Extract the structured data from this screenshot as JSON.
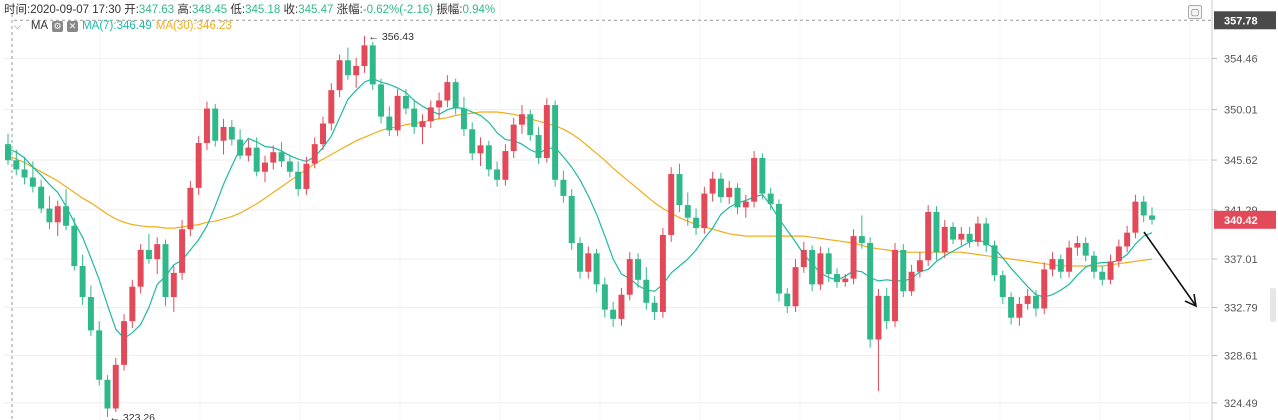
{
  "info": {
    "time_label": "时间:",
    "time": "2020-09-07 17:30",
    "open_label": "开:",
    "open": "347.63",
    "high_label": "高:",
    "high": "348.45",
    "low_label": "低:",
    "low": "345.18",
    "close_label": "收:",
    "close": "345.47",
    "change_label": "涨幅:",
    "change": "-0.62%(-2.16)",
    "amp_label": "振幅:",
    "amp": "0.94%"
  },
  "ma": {
    "label": "MA",
    "ma7_label": "MA(7):346.49",
    "ma30_label": "MA(30):346.23",
    "ma7_color": "#1fb9a4",
    "ma30_color": "#f0ad1a"
  },
  "icons": {
    "collapse": "chevron-down-icon",
    "settings": "gear-icon",
    "close": "close-icon",
    "expand": "expand-icon"
  },
  "colors": {
    "up": "#e24a5a",
    "down": "#2fb98a",
    "grid": "#eeeeee",
    "axis_text": "#555555"
  },
  "chart_data": {
    "type": "candlestick",
    "ylim": [
      323.0,
      358.5
    ],
    "y_ticks": [
      "354.46",
      "350.01",
      "345.62",
      "341.29",
      "337.01",
      "332.79",
      "328.61",
      "324.49"
    ],
    "current_price": "340.42",
    "top_price": "357.78",
    "max_label": "← 356.43",
    "min_label": "← 323.26",
    "grid": true,
    "candles": [
      [
        347,
        347.9,
        345.2,
        345.6
      ],
      [
        345.6,
        346.5,
        344.3,
        344.8
      ],
      [
        344.8,
        345.9,
        343.5,
        344.1
      ],
      [
        344.1,
        345.5,
        342.8,
        343.3
      ],
      [
        343.3,
        343.9,
        341.0,
        341.4
      ],
      [
        341.4,
        342.5,
        339.6,
        340.2
      ],
      [
        340.2,
        342.1,
        339.0,
        341.6
      ],
      [
        341.6,
        343.1,
        339.5,
        339.9
      ],
      [
        339.9,
        340.6,
        336.0,
        336.4
      ],
      [
        336.4,
        337.4,
        333.0,
        333.7
      ],
      [
        333.7,
        334.7,
        330.3,
        330.8
      ],
      [
        330.8,
        331.6,
        326.0,
        326.5
      ],
      [
        326.5,
        326.9,
        323.26,
        324.0
      ],
      [
        324.0,
        328.4,
        323.7,
        327.8
      ],
      [
        327.8,
        332.2,
        327.3,
        331.6
      ],
      [
        331.6,
        335.2,
        331.0,
        334.6
      ],
      [
        334.6,
        338.3,
        334.0,
        337.8
      ],
      [
        337.8,
        339.2,
        336.6,
        337.0
      ],
      [
        337.0,
        338.9,
        335.7,
        338.3
      ],
      [
        338.3,
        338.7,
        332.9,
        333.7
      ],
      [
        333.7,
        336.4,
        332.4,
        335.8
      ],
      [
        335.8,
        340.4,
        335.2,
        339.6
      ],
      [
        339.6,
        343.8,
        339.0,
        343.2
      ],
      [
        343.2,
        347.7,
        342.6,
        347.1
      ],
      [
        347.1,
        350.7,
        346.5,
        350.1
      ],
      [
        350.1,
        350.5,
        346.8,
        347.3
      ],
      [
        347.3,
        349.2,
        346.1,
        348.5
      ],
      [
        348.5,
        349.1,
        346.9,
        347.4
      ],
      [
        347.4,
        348.3,
        345.7,
        346.0
      ],
      [
        346.0,
        347.4,
        345.5,
        346.7
      ],
      [
        346.7,
        347.6,
        344.2,
        344.6
      ],
      [
        344.6,
        346.0,
        343.7,
        345.4
      ],
      [
        345.4,
        346.9,
        344.8,
        346.3
      ],
      [
        346.3,
        347.2,
        345.0,
        345.5
      ],
      [
        345.5,
        346.1,
        344.1,
        344.6
      ],
      [
        344.6,
        345.5,
        342.5,
        343.1
      ],
      [
        343.1,
        345.9,
        342.6,
        345.3
      ],
      [
        345.3,
        347.6,
        344.9,
        347.0
      ],
      [
        347.0,
        349.4,
        346.5,
        348.8
      ],
      [
        348.8,
        352.3,
        348.2,
        351.7
      ],
      [
        351.7,
        354.8,
        351.1,
        354.3
      ],
      [
        354.3,
        355.4,
        352.6,
        353.0
      ],
      [
        353.0,
        354.5,
        351.9,
        353.8
      ],
      [
        353.8,
        356.43,
        353.2,
        355.6
      ],
      [
        355.6,
        355.9,
        351.7,
        352.2
      ],
      [
        352.2,
        352.7,
        348.8,
        349.4
      ],
      [
        349.4,
        350.3,
        347.7,
        348.2
      ],
      [
        348.2,
        351.8,
        347.7,
        351.2
      ],
      [
        351.2,
        351.8,
        349.6,
        350.1
      ],
      [
        350.1,
        350.9,
        347.9,
        348.5
      ],
      [
        348.5,
        349.6,
        347.0,
        349.0
      ],
      [
        349.0,
        350.8,
        348.4,
        350.2
      ],
      [
        350.2,
        351.5,
        349.2,
        350.8
      ],
      [
        350.8,
        353.0,
        350.2,
        352.4
      ],
      [
        352.4,
        352.7,
        349.6,
        350.1
      ],
      [
        350.1,
        351.1,
        347.7,
        348.3
      ],
      [
        348.3,
        348.9,
        345.6,
        346.2
      ],
      [
        346.2,
        347.6,
        345.1,
        346.9
      ],
      [
        346.9,
        347.3,
        344.2,
        344.8
      ],
      [
        344.8,
        345.5,
        343.3,
        343.9
      ],
      [
        343.9,
        347.0,
        343.4,
        346.4
      ],
      [
        346.4,
        349.3,
        345.8,
        348.7
      ],
      [
        348.7,
        350.4,
        347.9,
        349.6
      ],
      [
        349.6,
        350.0,
        347.3,
        347.8
      ],
      [
        347.8,
        348.5,
        345.3,
        345.8
      ],
      [
        345.8,
        351.0,
        345.4,
        350.4
      ],
      [
        350.4,
        350.8,
        343.3,
        343.9
      ],
      [
        343.9,
        344.7,
        341.9,
        342.5
      ],
      [
        342.5,
        343.1,
        337.8,
        338.4
      ],
      [
        338.4,
        338.9,
        335.3,
        335.9
      ],
      [
        335.9,
        338.1,
        335.3,
        337.5
      ],
      [
        337.5,
        337.9,
        334.1,
        334.8
      ],
      [
        334.8,
        335.4,
        331.9,
        332.6
      ],
      [
        332.6,
        333.3,
        331.1,
        331.8
      ],
      [
        331.8,
        334.5,
        331.2,
        333.9
      ],
      [
        333.9,
        337.6,
        333.4,
        337.0
      ],
      [
        337.0,
        337.5,
        334.5,
        335.2
      ],
      [
        335.2,
        336.3,
        332.6,
        333.2
      ],
      [
        333.2,
        333.8,
        331.7,
        332.4
      ],
      [
        332.4,
        339.7,
        331.9,
        339.1
      ],
      [
        339.1,
        345.0,
        338.5,
        344.4
      ],
      [
        344.4,
        345.3,
        341.1,
        341.7
      ],
      [
        341.7,
        342.8,
        339.9,
        340.6
      ],
      [
        340.6,
        341.4,
        339.1,
        339.7
      ],
      [
        339.7,
        343.3,
        339.2,
        342.7
      ],
      [
        342.7,
        344.6,
        342.0,
        344.0
      ],
      [
        344.0,
        344.5,
        341.9,
        342.4
      ],
      [
        342.4,
        343.8,
        341.8,
        343.2
      ],
      [
        343.2,
        343.6,
        340.9,
        341.5
      ],
      [
        341.5,
        342.6,
        340.6,
        342.0
      ],
      [
        342.0,
        346.4,
        341.5,
        345.8
      ],
      [
        345.8,
        346.2,
        342.2,
        342.7
      ],
      [
        342.7,
        343.2,
        341.3,
        341.8
      ],
      [
        341.8,
        342.2,
        333.3,
        334.0
      ],
      [
        334.0,
        334.5,
        332.3,
        332.9
      ],
      [
        332.9,
        337.0,
        332.4,
        336.3
      ],
      [
        336.3,
        338.5,
        335.8,
        337.8
      ],
      [
        337.8,
        338.2,
        334.2,
        334.8
      ],
      [
        334.8,
        338.1,
        334.3,
        337.5
      ],
      [
        337.5,
        338.0,
        335.0,
        335.7
      ],
      [
        335.7,
        336.2,
        334.5,
        335.0
      ],
      [
        335.0,
        335.7,
        334.6,
        335.3
      ],
      [
        335.3,
        339.6,
        334.8,
        339.0
      ],
      [
        339.0,
        340.8,
        337.9,
        338.4
      ],
      [
        338.4,
        338.9,
        329.3,
        330.0
      ],
      [
        330.0,
        334.4,
        325.5,
        333.8
      ],
      [
        333.8,
        334.5,
        330.9,
        331.6
      ],
      [
        331.6,
        338.4,
        331.1,
        337.8
      ],
      [
        337.8,
        338.3,
        333.7,
        334.2
      ],
      [
        334.2,
        336.5,
        333.8,
        335.9
      ],
      [
        335.9,
        337.6,
        335.4,
        336.9
      ],
      [
        336.9,
        341.7,
        336.4,
        341.1
      ],
      [
        341.1,
        341.6,
        336.9,
        337.6
      ],
      [
        337.6,
        340.4,
        337.1,
        339.8
      ],
      [
        339.8,
        340.2,
        338.3,
        338.7
      ],
      [
        338.7,
        339.8,
        338.2,
        339.2
      ],
      [
        339.2,
        339.8,
        338.0,
        338.5
      ],
      [
        338.5,
        340.7,
        338.1,
        340.1
      ],
      [
        340.1,
        340.6,
        337.6,
        338.2
      ],
      [
        338.2,
        338.6,
        335.1,
        335.6
      ],
      [
        335.6,
        336.0,
        333.1,
        333.7
      ],
      [
        333.7,
        334.1,
        331.3,
        331.9
      ],
      [
        331.9,
        333.7,
        331.2,
        333.1
      ],
      [
        333.1,
        334.4,
        332.6,
        333.8
      ],
      [
        333.8,
        334.3,
        332.0,
        332.7
      ],
      [
        332.7,
        336.7,
        332.2,
        336.1
      ],
      [
        336.1,
        337.6,
        335.5,
        337.0
      ],
      [
        337.0,
        337.4,
        335.3,
        335.9
      ],
      [
        335.9,
        338.6,
        335.4,
        338.0
      ],
      [
        338.0,
        339.0,
        337.3,
        338.4
      ],
      [
        338.4,
        338.9,
        336.8,
        337.3
      ],
      [
        337.3,
        337.7,
        335.3,
        335.9
      ],
      [
        335.9,
        336.4,
        334.7,
        335.2
      ],
      [
        335.2,
        337.4,
        334.8,
        336.8
      ],
      [
        336.8,
        338.7,
        336.3,
        338.1
      ],
      [
        338.1,
        339.9,
        337.6,
        339.3
      ],
      [
        339.3,
        342.6,
        338.8,
        342.0
      ],
      [
        342.0,
        342.5,
        340.2,
        340.8
      ],
      [
        340.8,
        341.5,
        340.0,
        340.42
      ]
    ],
    "series": [
      {
        "name": "MA(7)",
        "values": [
          346.6,
          346.3,
          345.8,
          345.0,
          344.3,
          343.5,
          342.8,
          341.6,
          340.2,
          338.9,
          337.1,
          335.2,
          333.0,
          330.9,
          330.1,
          330.6,
          331.3,
          332.8,
          334.8,
          335.5,
          336.5,
          336.9,
          337.8,
          338.7,
          339.9,
          341.6,
          343.5,
          345.1,
          346.6,
          347.5,
          347.2,
          346.8,
          346.7,
          346.4,
          346.0,
          345.7,
          345.5,
          345.9,
          346.7,
          347.7,
          349.3,
          350.9,
          351.7,
          352.4,
          352.7,
          352.4,
          352.2,
          351.9,
          351.5,
          350.8,
          350.3,
          349.9,
          349.6,
          350.0,
          350.2,
          350.1,
          349.8,
          349.5,
          348.9,
          348.0,
          347.4,
          347.3,
          347.0,
          346.5,
          346.2,
          346.6,
          346.7,
          345.9,
          345.0,
          343.9,
          342.5,
          340.9,
          339.0,
          337.0,
          335.7,
          335.3,
          334.7,
          334.3,
          334.2,
          334.8,
          335.8,
          336.4,
          337.0,
          337.8,
          338.8,
          339.7,
          340.9,
          341.5,
          341.9,
          342.1,
          342.4,
          342.6,
          341.7,
          340.5,
          339.5,
          338.5,
          337.4,
          336.6,
          335.8,
          335.4,
          335.2,
          335.5,
          336.0,
          335.9,
          335.4,
          335.1,
          335.2,
          335.1,
          335.1,
          335.3,
          335.9,
          336.1,
          336.8,
          337.3,
          337.7,
          338.1,
          338.5,
          338.7,
          338.4,
          337.9,
          337.1,
          336.2,
          335.4,
          334.6,
          333.9,
          333.7,
          333.9,
          334.3,
          334.8,
          335.6,
          336.3,
          336.6,
          336.7,
          336.7,
          336.9,
          337.4,
          338.3,
          339.0,
          339.3
        ]
      },
      {
        "name": "MA(30)",
        "values": [
          346.0,
          345.7,
          345.4,
          345.0,
          344.6,
          344.2,
          343.8,
          343.3,
          342.8,
          342.3,
          341.9,
          341.4,
          340.9,
          340.5,
          340.2,
          340.0,
          339.9,
          339.8,
          339.8,
          339.7,
          339.7,
          339.8,
          339.9,
          340.0,
          340.2,
          340.3,
          340.5,
          340.7,
          341.0,
          341.4,
          341.8,
          342.3,
          342.8,
          343.3,
          343.8,
          344.3,
          344.8,
          345.3,
          345.7,
          346.1,
          346.5,
          346.9,
          347.3,
          347.6,
          347.9,
          348.2,
          348.4,
          348.5,
          348.7,
          348.8,
          348.9,
          349.1,
          349.2,
          349.3,
          349.5,
          349.6,
          349.7,
          349.8,
          349.8,
          349.8,
          349.7,
          349.6,
          349.4,
          349.2,
          349.0,
          348.8,
          348.6,
          348.3,
          347.9,
          347.4,
          346.8,
          346.2,
          345.6,
          344.9,
          344.3,
          343.7,
          343.1,
          342.5,
          341.9,
          341.4,
          341.0,
          340.6,
          340.3,
          340.0,
          339.8,
          339.6,
          339.4,
          339.2,
          339.1,
          339.0,
          339.0,
          339.0,
          339.0,
          339.0,
          339.0,
          339.0,
          339.0,
          338.9,
          338.8,
          338.7,
          338.6,
          338.5,
          338.4,
          338.2,
          338.0,
          337.9,
          337.8,
          337.7,
          337.6,
          337.6,
          337.6,
          337.6,
          337.6,
          337.6,
          337.6,
          337.6,
          337.5,
          337.4,
          337.3,
          337.2,
          337.1,
          337.0,
          336.9,
          336.8,
          336.7,
          336.6,
          336.5,
          336.4,
          336.4,
          336.4,
          336.4,
          336.4,
          336.4,
          336.5,
          336.6,
          336.7,
          336.8,
          336.9,
          337.0
        ]
      }
    ]
  }
}
